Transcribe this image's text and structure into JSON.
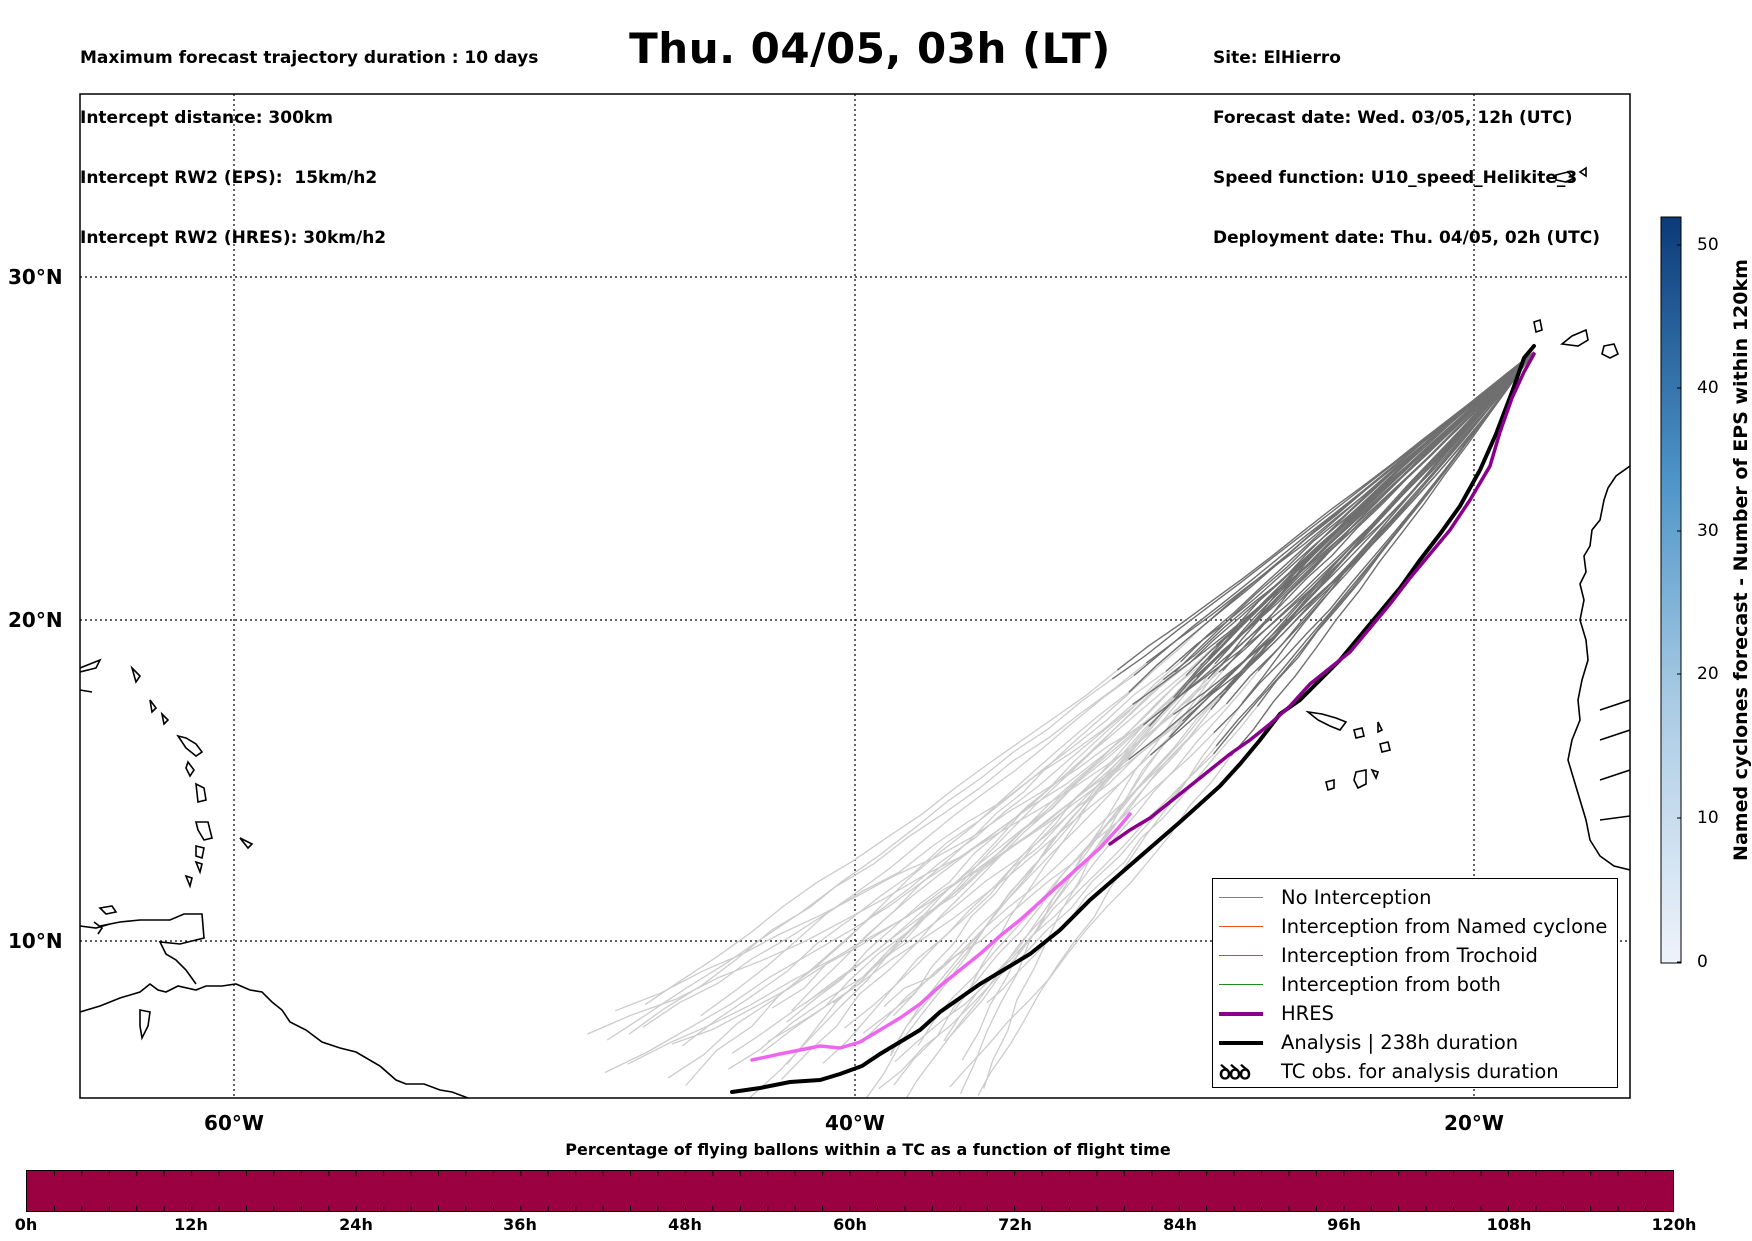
{
  "header": {
    "left_lines": [
      "Maximum forecast trajectory duration : 10 days",
      "Intercept distance: 300km",
      "Intercept RW2 (EPS):  15km/h2",
      "Intercept RW2 (HRES): 30km/h2"
    ],
    "title": "Thu. 04/05, 03h (LT)",
    "right_lines": [
      "Site: ElHierro",
      "Forecast date: Wed. 03/05, 12h (UTC)",
      "Speed function: U10_speed_Helikite_3",
      "Deployment date: Thu. 04/05, 02h (UTC)"
    ]
  },
  "map": {
    "lat_labels": [
      "30°N",
      "20°N",
      "10°N"
    ],
    "lon_labels": [
      "60°W",
      "40°W",
      "20°W"
    ],
    "gridline_style": "dotted"
  },
  "legend": {
    "items": [
      {
        "label": "No Interception",
        "color": "#7f7f7f",
        "style": "thin"
      },
      {
        "label": "Interception from Named cyclone",
        "color": "#e8541e",
        "style": "thin"
      },
      {
        "label": "Interception from Trochoid",
        "color": "#7a7a1a",
        "style": "thin"
      },
      {
        "label": "Interception from both",
        "color": "#1f8a1f",
        "style": "thin"
      },
      {
        "label": "HRES",
        "color": "#8b008b",
        "style": "thick"
      },
      {
        "label": "Analysis | 238h duration",
        "color": "#000000",
        "style": "thick"
      },
      {
        "label": "TC obs. for analysis duration",
        "glyph": "ꝺꝺꝺ",
        "style": "glyph"
      }
    ]
  },
  "colorbar": {
    "label": "Named cyclones forecast - Number of EPS within 120km",
    "ticks": [
      "0",
      "10",
      "20",
      "30",
      "40",
      "50"
    ],
    "color_low": "#eef3fb",
    "color_high": "#0b3a78"
  },
  "percentage_bar": {
    "caption": "Percentage of flying ballons within a TC as a function of flight time",
    "ticks": [
      "0h",
      "12h",
      "24h",
      "36h",
      "48h",
      "60h",
      "72h",
      "84h",
      "96h",
      "108h",
      "120h"
    ],
    "color": "#9b0040"
  },
  "colors": {
    "eps_light": "#cccccc",
    "eps_dark": "#6f6f6f",
    "hres_early": "#ee66ee",
    "hres_late": "#8b008b",
    "analysis": "#000000"
  }
}
